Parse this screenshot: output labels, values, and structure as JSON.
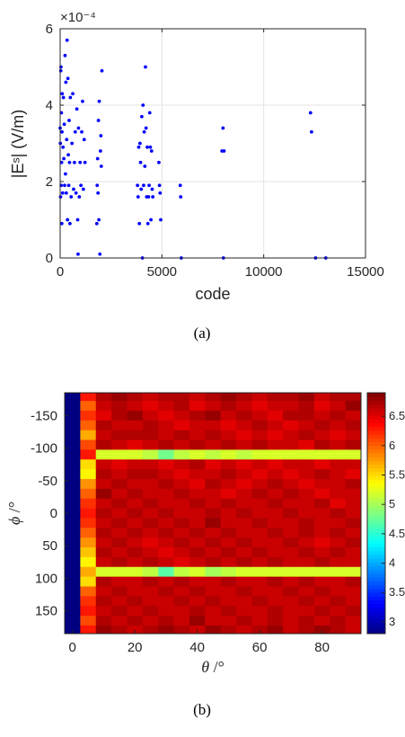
{
  "charts": [
    {
      "id": "a",
      "chart_data": {
        "type": "scatter",
        "x_label": "code",
        "y_label": "|Eˢ| (V/m)",
        "y_exponent": "×10⁻⁴",
        "caption": "(a)",
        "x_ticks": [
          "0",
          "5000",
          "10000",
          "15000"
        ],
        "y_ticks": [
          "0",
          "2",
          "4",
          "6"
        ],
        "xlim": [
          0,
          15000
        ],
        "ylim": [
          0,
          6
        ],
        "grid": true,
        "marker_color": "#0000ff",
        "points": [
          [
            0,
            3.4
          ],
          [
            10,
            3.0
          ],
          [
            20,
            1.6
          ],
          [
            30,
            4.9
          ],
          [
            40,
            5.0
          ],
          [
            50,
            1.9
          ],
          [
            60,
            3.8
          ],
          [
            70,
            2.5
          ],
          [
            80,
            0.9
          ],
          [
            90,
            3.3
          ],
          [
            100,
            4.3
          ],
          [
            120,
            1.7
          ],
          [
            140,
            2.9
          ],
          [
            160,
            4.2
          ],
          [
            180,
            2.6
          ],
          [
            200,
            3.5
          ],
          [
            220,
            1.9
          ],
          [
            240,
            5.3
          ],
          [
            260,
            2.2
          ],
          [
            280,
            4.6
          ],
          [
            300,
            1.7
          ],
          [
            320,
            3.1
          ],
          [
            340,
            5.7
          ],
          [
            360,
            1.0
          ],
          [
            380,
            4.7
          ],
          [
            400,
            2.7
          ],
          [
            420,
            1.9
          ],
          [
            440,
            3.6
          ],
          [
            460,
            2.5
          ],
          [
            480,
            0.9
          ],
          [
            500,
            4.2
          ],
          [
            540,
            1.6
          ],
          [
            580,
            3.0
          ],
          [
            620,
            4.3
          ],
          [
            660,
            1.8
          ],
          [
            700,
            2.5
          ],
          [
            740,
            3.3
          ],
          [
            780,
            1.7
          ],
          [
            820,
            3.9
          ],
          [
            860,
            1.0
          ],
          [
            880,
            0.1
          ],
          [
            900,
            3.4
          ],
          [
            940,
            1.6
          ],
          [
            980,
            2.5
          ],
          [
            1020,
            1.9
          ],
          [
            1060,
            3.3
          ],
          [
            1100,
            4.1
          ],
          [
            1140,
            1.8
          ],
          [
            1180,
            3.1
          ],
          [
            1220,
            2.5
          ],
          [
            1800,
            0.9
          ],
          [
            1820,
            1.9
          ],
          [
            1840,
            2.6
          ],
          [
            1860,
            1.7
          ],
          [
            1880,
            3.6
          ],
          [
            1900,
            1.0
          ],
          [
            1920,
            4.1
          ],
          [
            1950,
            0.1
          ],
          [
            1980,
            2.8
          ],
          [
            2000,
            3.2
          ],
          [
            2020,
            2.4
          ],
          [
            2050,
            4.9
          ],
          [
            3800,
            1.9
          ],
          [
            3830,
            1.6
          ],
          [
            3860,
            2.9
          ],
          [
            3890,
            0.9
          ],
          [
            3920,
            3.0
          ],
          [
            3950,
            2.5
          ],
          [
            3980,
            1.8
          ],
          [
            4010,
            3.7
          ],
          [
            4040,
            0.0
          ],
          [
            4070,
            4.0
          ],
          [
            4100,
            1.9
          ],
          [
            4130,
            3.3
          ],
          [
            4160,
            2.4
          ],
          [
            4190,
            5.0
          ],
          [
            4220,
            3.4
          ],
          [
            4250,
            1.6
          ],
          [
            4280,
            2.9
          ],
          [
            4310,
            0.9
          ],
          [
            4340,
            1.6
          ],
          [
            4370,
            1.9
          ],
          [
            4400,
            3.8
          ],
          [
            4430,
            2.9
          ],
          [
            4460,
            1.0
          ],
          [
            4490,
            2.8
          ],
          [
            4520,
            1.8
          ],
          [
            4550,
            1.6
          ],
          [
            4850,
            2.5
          ],
          [
            4880,
            1.9
          ],
          [
            4910,
            1.7
          ],
          [
            4940,
            1.0
          ],
          [
            5900,
            1.9
          ],
          [
            5920,
            1.6
          ],
          [
            5950,
            0.0
          ],
          [
            7950,
            2.8
          ],
          [
            8000,
            3.4
          ],
          [
            8050,
            2.8
          ],
          [
            8020,
            0.0
          ],
          [
            12300,
            3.8
          ],
          [
            12350,
            3.3
          ],
          [
            12550,
            0.0
          ],
          [
            13050,
            0.0
          ]
        ]
      }
    },
    {
      "id": "b",
      "chart_data": {
        "type": "heatmap",
        "x_label_symbol": "θ",
        "x_label_unit": " /°",
        "y_label_symbol": "ϕ",
        "y_label_unit": " /°",
        "caption": "(b)",
        "x_ticks": [
          "0",
          "20",
          "40",
          "60",
          "80"
        ],
        "y_ticks": [
          "-150",
          "-100",
          "-50",
          "0",
          "50",
          "100",
          "150"
        ],
        "xlim": [
          -2.5,
          92.5
        ],
        "ylim": [
          -185,
          185
        ],
        "colorbar_ticks": [
          "3",
          "3.5",
          "4",
          "4.5",
          "5",
          "5.5",
          "6",
          "6.5"
        ],
        "colorbar_range": [
          2.8,
          6.9
        ],
        "colormap": "jet",
        "theta_values": [
          0,
          5,
          10,
          15,
          20,
          25,
          30,
          35,
          40,
          45,
          50,
          55,
          60,
          65,
          70,
          75,
          80,
          85,
          90
        ],
        "phi_values": [
          -180,
          -165,
          -150,
          -135,
          -120,
          -105,
          -90,
          -75,
          -60,
          -45,
          -30,
          -15,
          0,
          15,
          30,
          45,
          60,
          75,
          90,
          105,
          120,
          135,
          150,
          165,
          180
        ],
        "grid_values": [
          [
            2.8,
            6.3,
            6.7,
            6.8,
            6.7,
            6.6,
            6.7,
            6.7,
            6.6,
            6.7,
            6.8,
            6.7,
            6.6,
            6.7,
            6.7,
            6.8,
            6.6,
            6.7,
            6.7
          ],
          [
            2.8,
            6.0,
            6.6,
            6.7,
            6.6,
            6.5,
            6.6,
            6.7,
            6.5,
            6.6,
            6.7,
            6.6,
            6.5,
            6.6,
            6.6,
            6.7,
            6.5,
            6.6,
            6.8
          ],
          [
            2.8,
            6.2,
            6.5,
            6.7,
            6.8,
            6.6,
            6.5,
            6.6,
            6.7,
            6.8,
            6.6,
            6.7,
            6.6,
            6.5,
            6.7,
            6.7,
            6.6,
            6.7,
            6.6
          ],
          [
            2.8,
            6.0,
            6.7,
            6.6,
            6.6,
            6.7,
            6.6,
            6.5,
            6.6,
            6.6,
            6.5,
            6.6,
            6.7,
            6.6,
            6.5,
            6.6,
            6.7,
            6.6,
            6.7
          ],
          [
            2.8,
            5.7,
            6.6,
            6.7,
            6.7,
            6.7,
            6.6,
            6.7,
            6.6,
            6.7,
            6.6,
            6.5,
            6.6,
            6.5,
            6.6,
            6.7,
            6.6,
            6.5,
            6.6
          ],
          [
            2.8,
            6.1,
            6.7,
            6.6,
            6.5,
            6.6,
            6.7,
            6.6,
            6.7,
            6.6,
            6.7,
            6.6,
            6.7,
            6.6,
            6.6,
            6.5,
            6.7,
            6.6,
            6.7
          ],
          [
            2.8,
            6.3,
            5.2,
            5.2,
            5.2,
            5.1,
            4.8,
            5.1,
            5.2,
            5.1,
            5.2,
            5.1,
            5.2,
            5.2,
            5.2,
            5.2,
            5.2,
            5.2,
            5.2
          ],
          [
            2.8,
            5.5,
            6.6,
            6.5,
            6.6,
            6.6,
            6.5,
            6.6,
            6.7,
            6.5,
            6.6,
            6.5,
            6.6,
            6.5,
            6.6,
            6.6,
            6.5,
            6.6,
            6.6
          ],
          [
            2.8,
            5.4,
            6.7,
            6.6,
            6.7,
            6.7,
            6.6,
            6.5,
            6.6,
            6.6,
            6.7,
            6.6,
            6.5,
            6.6,
            6.5,
            6.6,
            6.7,
            6.6,
            6.5
          ],
          [
            2.8,
            5.8,
            6.6,
            6.7,
            6.6,
            6.6,
            6.7,
            6.6,
            6.5,
            6.7,
            6.6,
            6.5,
            6.6,
            6.7,
            6.6,
            6.5,
            6.6,
            6.6,
            6.7
          ],
          [
            2.8,
            6.0,
            6.8,
            6.6,
            6.7,
            6.6,
            6.6,
            6.7,
            6.6,
            6.6,
            6.5,
            6.6,
            6.7,
            6.6,
            6.7,
            6.6,
            6.5,
            6.6,
            6.6
          ],
          [
            2.8,
            6.2,
            6.6,
            6.7,
            6.6,
            6.7,
            6.6,
            6.6,
            6.7,
            6.6,
            6.7,
            6.6,
            6.6,
            6.7,
            6.6,
            6.6,
            6.7,
            6.5,
            6.6
          ],
          [
            2.8,
            6.3,
            6.7,
            6.6,
            6.7,
            6.6,
            6.7,
            6.6,
            6.6,
            6.7,
            6.6,
            6.7,
            6.6,
            6.6,
            6.7,
            6.6,
            6.6,
            6.7,
            6.6
          ],
          [
            2.8,
            6.2,
            6.6,
            6.7,
            6.6,
            6.7,
            6.6,
            6.7,
            6.6,
            6.8,
            6.6,
            6.6,
            6.7,
            6.6,
            6.6,
            6.7,
            6.6,
            6.6,
            6.7
          ],
          [
            2.8,
            6.0,
            6.7,
            6.6,
            6.7,
            6.6,
            6.7,
            6.6,
            6.7,
            6.6,
            6.7,
            6.6,
            6.6,
            6.7,
            6.6,
            6.7,
            6.6,
            6.7,
            6.6
          ],
          [
            2.8,
            5.8,
            6.6,
            6.7,
            6.6,
            6.5,
            6.6,
            6.7,
            6.6,
            6.7,
            6.6,
            6.7,
            6.6,
            6.6,
            6.7,
            6.6,
            6.5,
            6.6,
            6.7
          ],
          [
            2.8,
            5.6,
            6.7,
            6.6,
            6.7,
            6.6,
            6.5,
            6.6,
            6.7,
            6.6,
            6.7,
            6.6,
            6.7,
            6.6,
            6.6,
            6.7,
            6.6,
            6.7,
            6.6
          ],
          [
            2.8,
            5.4,
            6.6,
            6.7,
            6.6,
            6.7,
            6.6,
            6.5,
            6.6,
            6.7,
            6.6,
            6.7,
            6.6,
            6.7,
            6.6,
            6.6,
            6.7,
            6.6,
            6.6
          ],
          [
            2.8,
            5.7,
            5.2,
            5.2,
            5.2,
            5.1,
            4.7,
            5.1,
            5.2,
            5.0,
            5.1,
            5.2,
            5.2,
            5.2,
            5.2,
            5.2,
            5.2,
            5.2,
            5.2
          ],
          [
            2.8,
            5.5,
            6.7,
            6.6,
            6.6,
            6.7,
            6.6,
            6.7,
            6.6,
            6.6,
            6.7,
            6.6,
            6.6,
            6.7,
            6.6,
            6.7,
            6.6,
            6.6,
            6.7
          ],
          [
            2.8,
            6.0,
            6.6,
            6.7,
            6.6,
            6.6,
            6.7,
            6.6,
            6.7,
            6.6,
            6.6,
            6.7,
            6.6,
            6.6,
            6.7,
            6.6,
            6.7,
            6.6,
            6.6
          ],
          [
            2.8,
            6.2,
            6.7,
            6.6,
            6.7,
            6.6,
            6.6,
            6.7,
            6.6,
            6.7,
            6.6,
            6.6,
            6.7,
            6.6,
            6.6,
            6.7,
            6.6,
            6.7,
            6.6
          ],
          [
            2.8,
            6.3,
            6.6,
            6.7,
            6.6,
            6.7,
            6.6,
            6.6,
            6.7,
            6.6,
            6.7,
            6.6,
            6.6,
            6.7,
            6.6,
            6.6,
            6.7,
            6.6,
            6.7
          ],
          [
            2.8,
            6.1,
            6.7,
            6.6,
            6.7,
            6.6,
            6.7,
            6.6,
            6.8,
            6.6,
            6.6,
            6.7,
            6.6,
            6.7,
            6.6,
            6.7,
            6.6,
            6.7,
            6.6
          ],
          [
            2.8,
            6.3,
            6.8,
            6.7,
            6.6,
            6.7,
            6.8,
            6.7,
            6.6,
            6.8,
            6.7,
            6.6,
            6.7,
            6.8,
            6.6,
            6.7,
            6.8,
            6.7,
            6.6
          ]
        ]
      }
    }
  ]
}
